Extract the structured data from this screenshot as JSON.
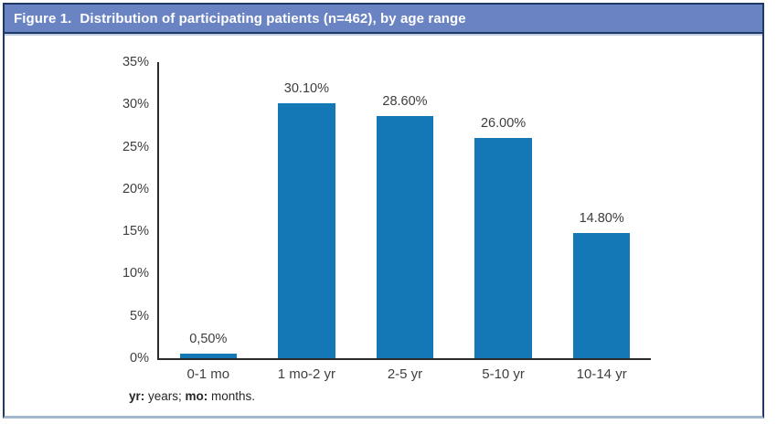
{
  "header": {
    "figure_label": "Figure 1.",
    "title": "Distribution of participating patients (n=462), by age range"
  },
  "chart_data": {
    "type": "bar",
    "title": "Figure 1. Distribution of participating patients (n=462), by age range",
    "categories": [
      "0-1 mo",
      "1 mo-2 yr",
      "2-5 yr",
      "5-10 yr",
      "10-14 yr"
    ],
    "values": [
      0.5,
      30.1,
      28.6,
      26.0,
      14.8
    ],
    "value_labels": [
      "0,50%",
      "30.10%",
      "28.60%",
      "26.00%",
      "14.80%"
    ],
    "y_ticks": [
      "0%",
      "5%",
      "10%",
      "15%",
      "20%",
      "25%",
      "30%",
      "35%"
    ],
    "ylim": [
      0,
      35
    ],
    "xlabel": "",
    "ylabel": "",
    "grid": false,
    "legend": "none",
    "bar_color": "#1478B6"
  },
  "footnote": {
    "abbr1": "yr:",
    "def1": " years; ",
    "abbr2": "mo:",
    "def2": " months."
  },
  "colors": {
    "header_bg": "#6983C3",
    "frame_border": "#1F3864",
    "frame_bottom": "#A3B8CF",
    "header_underline": "#BECCE8",
    "axis": "#2B2B2B",
    "label_text": "#3F3F3F"
  }
}
